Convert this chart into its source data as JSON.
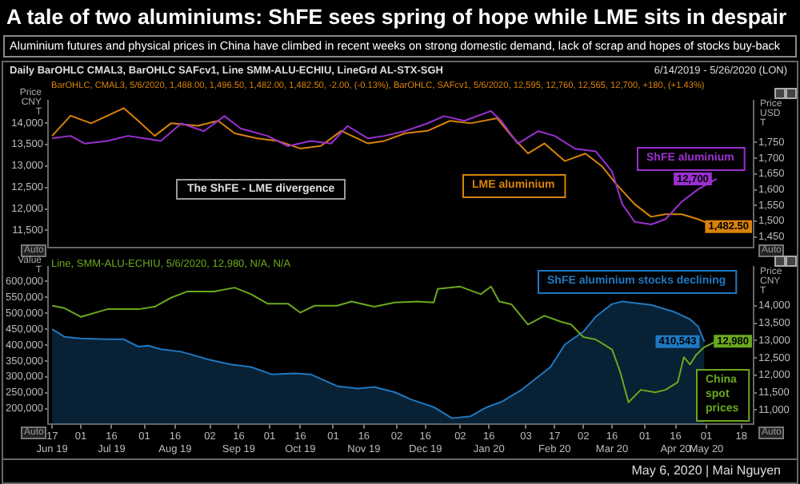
{
  "chart_data": [
    {
      "type": "line",
      "title": "A tale of two aluminiums: ShFE sees spring of hope while LME sits in despair",
      "subtitle": "Aluminium futures and physical prices in China have climbed in recent weeks on strong domestic demand, lack of scrap and hopes of stocks buy-back",
      "ylabel": "Price CNY T",
      "y2label": "Price USD T",
      "annotations": [
        "Daily BarOHLC CMAL3, BarOHLC SAFcv1, Line SMM-ALU-ECHIU, LineGrd AL-STX-SGH",
        "6/14/2019 - 5/26/2020 (LON)",
        "BarOHLC, CMAL3, 5/6/2020, 1,488.00, 1,496.50, 1,482.00, 1,482.50, -2.00, (-0.13%), BarOHLC, SAFcv1, 5/6/2020, 12,595, 12,760, 12,565, 12,700, +180, (+1.43%)",
        "The ShFE - LME divergence",
        "Auto",
        "Auto"
      ],
      "xlim": [
        "2019-06-15",
        "2020-05-24"
      ],
      "tick_labels": "y",
      "ylim": [
        11100,
        14520
      ],
      "yticks": [
        {
          "value": 11500,
          "label": "11,500"
        },
        {
          "value": 12000,
          "label": "12,000"
        },
        {
          "value": 12500,
          "label": "12,500"
        },
        {
          "value": 13000,
          "label": "13,000"
        },
        {
          "value": 13500,
          "label": "13,500"
        },
        {
          "value": 14000,
          "label": "14,000"
        }
      ],
      "y2lim": [
        1416,
        1883
      ],
      "y2ticks": [
        {
          "value": 1450,
          "label": "1,450"
        },
        {
          "value": 1500,
          "label": "1,500"
        },
        {
          "value": 1550,
          "label": "1,550"
        },
        {
          "value": 1600,
          "label": "1,600"
        },
        {
          "value": 1650,
          "label": "1,650"
        },
        {
          "value": 1700,
          "label": "1,700"
        },
        {
          "value": 1750,
          "label": "1,750"
        }
      ],
      "series": [
        {
          "name": "ShFE aluminium",
          "color": "#9b30d0",
          "x": [
            "2019-06-17",
            "2019-06-26",
            "2019-07-03",
            "2019-07-14",
            "2019-07-24",
            "2019-08-01",
            "2019-08-09",
            "2019-08-19",
            "2019-08-30",
            "2019-09-09",
            "2019-09-17",
            "2019-09-30",
            "2019-10-10",
            "2019-10-21",
            "2019-10-31",
            "2019-11-08",
            "2019-11-18",
            "2019-11-26",
            "2019-12-06",
            "2019-12-17",
            "2019-12-25",
            "2020-01-04",
            "2020-01-17",
            "2020-01-22",
            "2020-01-30",
            "2020-02-09",
            "2020-02-17",
            "2020-02-27",
            "2020-03-08",
            "2020-03-16",
            "2020-03-21",
            "2020-03-27",
            "2020-04-04",
            "2020-04-11",
            "2020-04-19",
            "2020-04-27",
            "2020-05-06"
          ],
          "values": [
            13640,
            13700,
            13520,
            13580,
            13700,
            13640,
            13580,
            13990,
            13810,
            14160,
            13870,
            13700,
            13460,
            13580,
            13520,
            13930,
            13640,
            13700,
            13810,
            13990,
            14160,
            14050,
            14280,
            14050,
            13520,
            13810,
            13700,
            13400,
            13340,
            12870,
            12110,
            11700,
            11640,
            11760,
            12170,
            12460,
            12700
          ],
          "value_labels": [
            null,
            null,
            null,
            null,
            null,
            null,
            null,
            null,
            null,
            null,
            null,
            null,
            null,
            null,
            null,
            null,
            null,
            null,
            null,
            null,
            null,
            null,
            null,
            null,
            null,
            null,
            null,
            null,
            null,
            null,
            null,
            null,
            null,
            null,
            null,
            null,
            "12,700"
          ]
        },
        {
          "name": "LME aluminium",
          "color": "#d9820a",
          "axis": "y2",
          "x": [
            "2019-06-17",
            "2019-06-26",
            "2019-07-06",
            "2019-07-14",
            "2019-07-22",
            "2019-07-29",
            "2019-08-06",
            "2019-08-14",
            "2019-08-27",
            "2019-09-06",
            "2019-09-14",
            "2019-09-25",
            "2019-10-05",
            "2019-10-16",
            "2019-10-26",
            "2019-11-05",
            "2019-11-18",
            "2019-11-26",
            "2019-12-06",
            "2019-12-17",
            "2019-12-28",
            "2020-01-07",
            "2020-01-20",
            "2020-01-27",
            "2020-02-04",
            "2020-02-12",
            "2020-02-22",
            "2020-03-03",
            "2020-03-11",
            "2020-03-18",
            "2020-03-27",
            "2020-04-04",
            "2020-04-11",
            "2020-04-19",
            "2020-04-27",
            "2020-05-06"
          ],
          "values": [
            1771,
            1835,
            1811,
            1835,
            1859,
            1819,
            1771,
            1811,
            1803,
            1819,
            1779,
            1763,
            1755,
            1731,
            1739,
            1787,
            1747,
            1755,
            1779,
            1787,
            1819,
            1811,
            1827,
            1771,
            1715,
            1747,
            1691,
            1715,
            1675,
            1618,
            1554,
            1514,
            1522,
            1522,
            1506,
            1482.5
          ],
          "value_labels": [
            null,
            null,
            null,
            null,
            null,
            null,
            null,
            null,
            null,
            null,
            null,
            null,
            null,
            null,
            null,
            null,
            null,
            null,
            null,
            null,
            null,
            null,
            null,
            null,
            null,
            null,
            null,
            null,
            null,
            null,
            null,
            null,
            null,
            null,
            null,
            "1,482.50"
          ]
        }
      ]
    },
    {
      "type": "line",
      "ylabel": "Value T",
      "y2label": "Price CNY T",
      "annotations": [
        "Line, SMM-ALU-ECHIU, 5/6/2020, 12,980, N/A, N/A",
        "Auto",
        "Auto",
        "May 6, 2020 | Mai Nguyen"
      ],
      "xlim": [
        "2019-06-15",
        "2020-05-24"
      ],
      "xticks": [
        {
          "value": "2019-06-17",
          "label": "17\nJun 19"
        },
        {
          "value": "2019-07-01",
          "label": "01"
        },
        {
          "value": "2019-07-16",
          "label": "16\nJul 19"
        },
        {
          "value": "2019-08-01",
          "label": "01"
        },
        {
          "value": "2019-08-16",
          "label": "16\nAug 19"
        },
        {
          "value": "2019-09-02",
          "label": "02"
        },
        {
          "value": "2019-09-16",
          "label": "16\nSep 19"
        },
        {
          "value": "2019-10-01",
          "label": "01"
        },
        {
          "value": "2019-10-16",
          "label": "16\nOct 19"
        },
        {
          "value": "2019-11-01",
          "label": "01"
        },
        {
          "value": "2019-11-16",
          "label": "16\nNov 19"
        },
        {
          "value": "2019-12-02",
          "label": "02"
        },
        {
          "value": "2019-12-16",
          "label": "16\nDec 19"
        },
        {
          "value": "2020-01-02",
          "label": "02"
        },
        {
          "value": "2020-01-16",
          "label": "16\nJan 20"
        },
        {
          "value": "2020-02-03",
          "label": "03"
        },
        {
          "value": "2020-02-17",
          "label": "17\nFeb 20"
        },
        {
          "value": "2020-03-02",
          "label": "02"
        },
        {
          "value": "2020-03-16",
          "label": "16\nMar 20"
        },
        {
          "value": "2020-04-01",
          "label": "01"
        },
        {
          "value": "2020-04-16",
          "label": "16\nApr 20"
        },
        {
          "value": "2020-05-01",
          "label": "01\nMay 20"
        },
        {
          "value": "2020-05-18",
          "label": "18"
        }
      ],
      "ylim": [
        152000,
        646000
      ],
      "yticks": [
        {
          "value": 200000,
          "label": "200,000"
        },
        {
          "value": 250000,
          "label": "250,000"
        },
        {
          "value": 300000,
          "label": "300,000"
        },
        {
          "value": 350000,
          "label": "350,000"
        },
        {
          "value": 400000,
          "label": "400,000"
        },
        {
          "value": 450000,
          "label": "450,000"
        },
        {
          "value": 500000,
          "label": "500,000"
        },
        {
          "value": 550000,
          "label": "550,000"
        },
        {
          "value": 600000,
          "label": "600,000"
        }
      ],
      "y2lim": [
        10600,
        15120
      ],
      "y2ticks": [
        {
          "value": 11000,
          "label": "11,000"
        },
        {
          "value": 11500,
          "label": "11,500"
        },
        {
          "value": 12000,
          "label": "12,000"
        },
        {
          "value": 12500,
          "label": "12,500"
        },
        {
          "value": 13000,
          "label": "13,000"
        },
        {
          "value": 13500,
          "label": "13,500"
        },
        {
          "value": 14000,
          "label": "14,000"
        }
      ],
      "series": [
        {
          "name": "ShFE aluminium stocks declining",
          "type": "area",
          "color": "#1f78c0",
          "x": [
            "2019-06-17",
            "2019-06-23",
            "2019-07-01",
            "2019-07-14",
            "2019-07-22",
            "2019-07-29",
            "2019-08-03",
            "2019-08-09",
            "2019-08-19",
            "2019-09-01",
            "2019-09-12",
            "2019-09-22",
            "2019-10-02",
            "2019-10-13",
            "2019-10-21",
            "2019-11-03",
            "2019-11-13",
            "2019-11-21",
            "2019-12-01",
            "2019-12-09",
            "2019-12-20",
            "2019-12-29",
            "2020-01-07",
            "2020-01-15",
            "2020-01-22",
            "2020-02-01",
            "2020-02-15",
            "2020-02-22",
            "2020-03-02",
            "2020-03-08",
            "2020-03-16",
            "2020-03-21",
            "2020-04-04",
            "2020-04-15",
            "2020-04-23",
            "2020-04-27",
            "2020-04-30"
          ],
          "values": [
            450000,
            426000,
            421000,
            418000,
            418000,
            395000,
            398000,
            387000,
            379000,
            355000,
            339000,
            331000,
            308000,
            311000,
            308000,
            271000,
            263000,
            268000,
            252000,
            229000,
            205000,
            170000,
            176000,
            205000,
            221000,
            260000,
            331000,
            402000,
            442000,
            489000,
            529000,
            537000,
            526000,
            505000,
            481000,
            458000,
            410543
          ],
          "value_labels": [
            null,
            null,
            null,
            null,
            null,
            null,
            null,
            null,
            null,
            null,
            null,
            null,
            null,
            null,
            null,
            null,
            null,
            null,
            null,
            null,
            null,
            null,
            null,
            null,
            null,
            null,
            null,
            null,
            null,
            null,
            null,
            null,
            null,
            null,
            null,
            null,
            "410,543"
          ]
        },
        {
          "name": "China spot prices",
          "color": "#6aa81e",
          "axis": "y2",
          "x": [
            "2019-06-17",
            "2019-06-23",
            "2019-07-01",
            "2019-07-14",
            "2019-07-29",
            "2019-08-06",
            "2019-08-14",
            "2019-08-22",
            "2019-09-04",
            "2019-09-14",
            "2019-09-22",
            "2019-09-30",
            "2019-10-10",
            "2019-10-16",
            "2019-10-23",
            "2019-11-03",
            "2019-11-10",
            "2019-11-21",
            "2019-12-01",
            "2019-12-12",
            "2019-12-20",
            "2019-12-22",
            "2020-01-02",
            "2020-01-12",
            "2020-01-17",
            "2020-01-21",
            "2020-01-27",
            "2020-02-04",
            "2020-02-12",
            "2020-02-20",
            "2020-02-25",
            "2020-03-02",
            "2020-03-08",
            "2020-03-16",
            "2020-03-20",
            "2020-03-24",
            "2020-03-30",
            "2020-04-06",
            "2020-04-11",
            "2020-04-17",
            "2020-04-20",
            "2020-04-23",
            "2020-04-26",
            "2020-04-30",
            "2020-05-06"
          ],
          "values": [
            14000,
            13930,
            13680,
            13900,
            13900,
            13970,
            14230,
            14410,
            14410,
            14520,
            14330,
            14060,
            14060,
            13800,
            14000,
            14000,
            14120,
            13970,
            14090,
            14120,
            14090,
            14480,
            14550,
            14330,
            14550,
            14120,
            14040,
            13460,
            13710,
            13540,
            13460,
            13100,
            13030,
            12740,
            12090,
            11220,
            11580,
            11510,
            11580,
            11800,
            12520,
            12310,
            12590,
            12810,
            12980
          ],
          "value_labels": [
            null,
            null,
            null,
            null,
            null,
            null,
            null,
            null,
            null,
            null,
            null,
            null,
            null,
            null,
            null,
            null,
            null,
            null,
            null,
            null,
            null,
            null,
            null,
            null,
            null,
            null,
            null,
            null,
            null,
            null,
            null,
            null,
            null,
            null,
            null,
            null,
            null,
            null,
            null,
            null,
            null,
            null,
            null,
            null,
            "12,980"
          ]
        }
      ]
    }
  ]
}
